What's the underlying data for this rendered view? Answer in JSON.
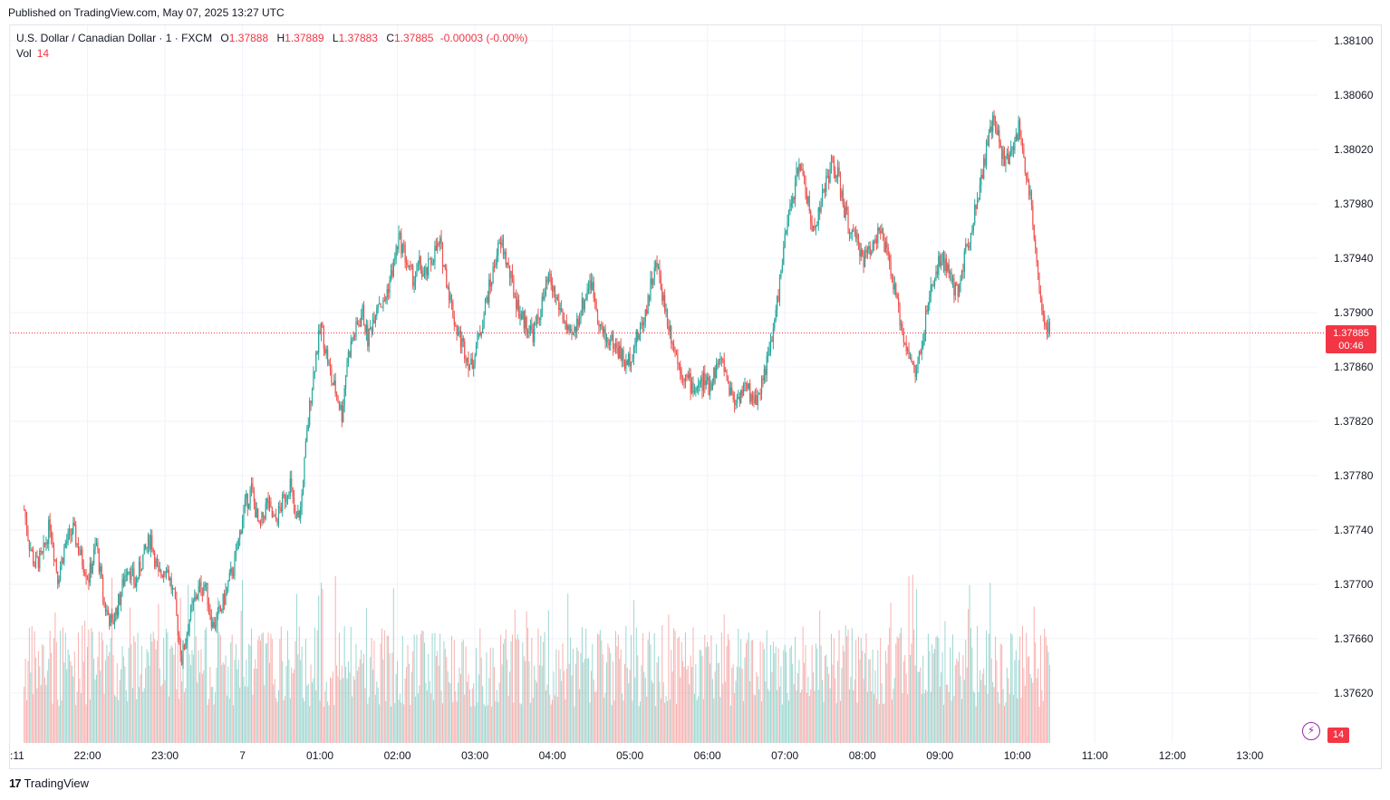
{
  "header": {
    "published": "Published on TradingView.com, May 07, 2025 13:27 UTC"
  },
  "legend": {
    "symbol": "U.S. Dollar / Canadian Dollar · 1 · FXCM",
    "o_label": "O",
    "o_value": "1.37888",
    "h_label": "H",
    "h_value": "1.37889",
    "l_label": "L",
    "l_value": "1.37883",
    "c_label": "C",
    "c_value": "1.37885",
    "change": "-0.00003 (-0.00%)",
    "vol_label": "Vol",
    "vol_value": "14"
  },
  "price_tag": {
    "price": "1.37885",
    "countdown": "00:46"
  },
  "volume_tag": "14",
  "brand": {
    "logo": "17",
    "name": "TradingView"
  },
  "colors": {
    "up": "#26a69a",
    "down": "#ef5350",
    "accent": "#f23645",
    "grid": "#f0f3fa"
  },
  "chart_data": {
    "type": "candlestick",
    "instrument": "USD/CAD",
    "interval": "1",
    "y_axis": {
      "ticks": [
        "1.38100",
        "1.38060",
        "1.38020",
        "1.37980",
        "1.37940",
        "1.37900",
        "1.37860",
        "1.37820",
        "1.37780",
        "1.37740",
        "1.37700",
        "1.37660",
        "1.37620"
      ],
      "ylim": [
        1.37595,
        1.38125
      ]
    },
    "x_axis": {
      "ticks": [
        {
          "label": ":11",
          "t": -11
        },
        {
          "label": "22:00",
          "t": 49
        },
        {
          "label": "23:00",
          "t": 109
        },
        {
          "label": "7",
          "t": 169
        },
        {
          "label": "01:00",
          "t": 229
        },
        {
          "label": "02:00",
          "t": 289
        },
        {
          "label": "03:00",
          "t": 349
        },
        {
          "label": "04:00",
          "t": 409
        },
        {
          "label": "05:00",
          "t": 469
        },
        {
          "label": "06:00",
          "t": 529
        },
        {
          "label": "07:00",
          "t": 589
        },
        {
          "label": "08:00",
          "t": 649
        },
        {
          "label": "09:00",
          "t": 709
        },
        {
          "label": "10:00",
          "t": 769
        },
        {
          "label": "11:00",
          "t": 829
        },
        {
          "label": "12:00",
          "t": 889
        },
        {
          "label": "13:00",
          "t": 949
        }
      ]
    },
    "current_price": 1.37885,
    "close_path": [
      [
        0,
        1.37755
      ],
      [
        4,
        1.3773
      ],
      [
        8,
        1.37715
      ],
      [
        14,
        1.3772
      ],
      [
        20,
        1.37745
      ],
      [
        26,
        1.37705
      ],
      [
        32,
        1.3773
      ],
      [
        38,
        1.3774
      ],
      [
        44,
        1.3772
      ],
      [
        50,
        1.37705
      ],
      [
        56,
        1.3773
      ],
      [
        62,
        1.37685
      ],
      [
        68,
        1.3767
      ],
      [
        74,
        1.3769
      ],
      [
        80,
        1.37715
      ],
      [
        86,
        1.377
      ],
      [
        92,
        1.3772
      ],
      [
        98,
        1.37735
      ],
      [
        104,
        1.37705
      ],
      [
        110,
        1.37715
      ],
      [
        116,
        1.3769
      ],
      [
        122,
        1.37645
      ],
      [
        128,
        1.37675
      ],
      [
        134,
        1.37695
      ],
      [
        140,
        1.377
      ],
      [
        146,
        1.3767
      ],
      [
        152,
        1.3768
      ],
      [
        158,
        1.377
      ],
      [
        164,
        1.3772
      ],
      [
        170,
        1.37755
      ],
      [
        176,
        1.3777
      ],
      [
        182,
        1.3774
      ],
      [
        188,
        1.3776
      ],
      [
        194,
        1.37745
      ],
      [
        200,
        1.3776
      ],
      [
        206,
        1.37775
      ],
      [
        210,
        1.37745
      ],
      [
        214,
        1.37755
      ],
      [
        218,
        1.378
      ],
      [
        222,
        1.3784
      ],
      [
        226,
        1.3787
      ],
      [
        230,
        1.3789
      ],
      [
        234,
        1.3787
      ],
      [
        238,
        1.3785
      ],
      [
        242,
        1.3784
      ],
      [
        246,
        1.37825
      ],
      [
        250,
        1.37865
      ],
      [
        254,
        1.3788
      ],
      [
        258,
        1.3789
      ],
      [
        262,
        1.379
      ],
      [
        266,
        1.3788
      ],
      [
        270,
        1.37895
      ],
      [
        274,
        1.3791
      ],
      [
        278,
        1.37905
      ],
      [
        282,
        1.3792
      ],
      [
        286,
        1.37935
      ],
      [
        290,
        1.37955
      ],
      [
        294,
        1.37945
      ],
      [
        298,
        1.3793
      ],
      [
        302,
        1.37925
      ],
      [
        306,
        1.37935
      ],
      [
        310,
        1.37925
      ],
      [
        314,
        1.37935
      ],
      [
        318,
        1.37945
      ],
      [
        322,
        1.3795
      ],
      [
        326,
        1.3793
      ],
      [
        330,
        1.3791
      ],
      [
        334,
        1.3789
      ],
      [
        338,
        1.3788
      ],
      [
        342,
        1.3787
      ],
      [
        346,
        1.3786
      ],
      [
        350,
        1.37875
      ],
      [
        354,
        1.3789
      ],
      [
        358,
        1.3791
      ],
      [
        362,
        1.37925
      ],
      [
        366,
        1.37945
      ],
      [
        370,
        1.3795
      ],
      [
        374,
        1.37935
      ],
      [
        378,
        1.3792
      ],
      [
        382,
        1.37905
      ],
      [
        386,
        1.37895
      ],
      [
        390,
        1.3789
      ],
      [
        394,
        1.37885
      ],
      [
        398,
        1.37895
      ],
      [
        402,
        1.3791
      ],
      [
        406,
        1.37925
      ],
      [
        410,
        1.37915
      ],
      [
        414,
        1.37905
      ],
      [
        418,
        1.37895
      ],
      [
        422,
        1.3788
      ],
      [
        426,
        1.37885
      ],
      [
        430,
        1.379
      ],
      [
        434,
        1.3791
      ],
      [
        438,
        1.37925
      ],
      [
        442,
        1.3791
      ],
      [
        446,
        1.3789
      ],
      [
        450,
        1.3788
      ],
      [
        454,
        1.3788
      ],
      [
        458,
        1.37875
      ],
      [
        462,
        1.3787
      ],
      [
        466,
        1.3786
      ],
      [
        470,
        1.3787
      ],
      [
        474,
        1.3788
      ],
      [
        478,
        1.3789
      ],
      [
        482,
        1.37905
      ],
      [
        486,
        1.37925
      ],
      [
        490,
        1.37935
      ],
      [
        494,
        1.37915
      ],
      [
        498,
        1.37895
      ],
      [
        502,
        1.3788
      ],
      [
        506,
        1.37865
      ],
      [
        510,
        1.37855
      ],
      [
        514,
        1.3785
      ],
      [
        518,
        1.37845
      ],
      [
        522,
        1.37845
      ],
      [
        526,
        1.3785
      ],
      [
        530,
        1.37845
      ],
      [
        534,
        1.37855
      ],
      [
        538,
        1.37865
      ],
      [
        542,
        1.3786
      ],
      [
        546,
        1.37845
      ],
      [
        550,
        1.37835
      ],
      [
        554,
        1.3784
      ],
      [
        558,
        1.37845
      ],
      [
        562,
        1.3784
      ],
      [
        566,
        1.37835
      ],
      [
        570,
        1.37845
      ],
      [
        574,
        1.3786
      ],
      [
        578,
        1.37875
      ],
      [
        582,
        1.379
      ],
      [
        586,
        1.3793
      ],
      [
        590,
        1.3796
      ],
      [
        594,
        1.3798
      ],
      [
        598,
        1.38
      ],
      [
        602,
        1.3801
      ],
      [
        606,
        1.37985
      ],
      [
        610,
        1.3796
      ],
      [
        614,
        1.3797
      ],
      [
        618,
        1.37985
      ],
      [
        622,
        1.38
      ],
      [
        626,
        1.3801
      ],
      [
        630,
        1.38
      ],
      [
        634,
        1.3798
      ],
      [
        638,
        1.37965
      ],
      [
        642,
        1.37955
      ],
      [
        646,
        1.3795
      ],
      [
        650,
        1.3794
      ],
      [
        654,
        1.37945
      ],
      [
        658,
        1.37955
      ],
      [
        662,
        1.3796
      ],
      [
        666,
        1.3795
      ],
      [
        670,
        1.37935
      ],
      [
        674,
        1.37915
      ],
      [
        678,
        1.37895
      ],
      [
        682,
        1.3788
      ],
      [
        686,
        1.37865
      ],
      [
        690,
        1.37855
      ],
      [
        694,
        1.3787
      ],
      [
        698,
        1.37895
      ],
      [
        702,
        1.37915
      ],
      [
        706,
        1.3793
      ],
      [
        710,
        1.3794
      ],
      [
        714,
        1.37935
      ],
      [
        718,
        1.3792
      ],
      [
        722,
        1.37915
      ],
      [
        726,
        1.3793
      ],
      [
        730,
        1.3795
      ],
      [
        734,
        1.37965
      ],
      [
        738,
        1.37985
      ],
      [
        742,
        1.38005
      ],
      [
        746,
        1.38025
      ],
      [
        750,
        1.3804
      ],
      [
        754,
        1.3803
      ],
      [
        758,
        1.38015
      ],
      [
        762,
        1.3801
      ],
      [
        766,
        1.38025
      ],
      [
        770,
        1.38035
      ],
      [
        774,
        1.38015
      ],
      [
        778,
        1.3799
      ],
      [
        782,
        1.3796
      ],
      [
        786,
        1.3792
      ],
      [
        790,
        1.3789
      ],
      [
        794,
        1.37885
      ]
    ]
  }
}
